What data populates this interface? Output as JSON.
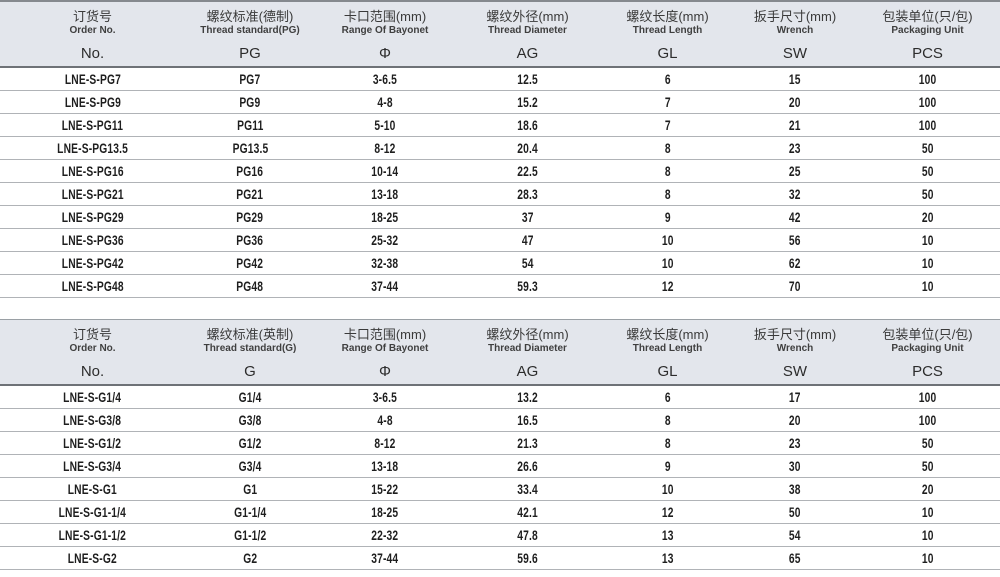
{
  "document": {
    "kind": "product-specification-tables",
    "series": "LNE-S cable gland selection tables"
  },
  "colors": {
    "header_bg": "#e3e6ec",
    "header_border_dark": "#6e7277",
    "table_top_border": "#85898e",
    "row_separator": "#b0b3b7",
    "body_text": "#1e1e1e",
    "header_text": "#3a3a3a"
  },
  "tables": [
    {
      "id": "pg-metric-table",
      "columns": [
        {
          "cn": "订货号",
          "en": "Order No.",
          "code": "No."
        },
        {
          "cn": "螺纹标准(德制)",
          "en": "Thread standard(PG)",
          "code": "PG"
        },
        {
          "cn": "卡口范围(mm)",
          "en": "Range Of Bayonet",
          "code": "Φ"
        },
        {
          "cn": "螺纹外径(mm)",
          "en": "Thread Diameter",
          "code": "AG"
        },
        {
          "cn": "螺纹长度(mm)",
          "en": "Thread Length",
          "code": "GL"
        },
        {
          "cn": "扳手尺寸(mm)",
          "en": "Wrench",
          "code": "SW"
        },
        {
          "cn": "包装单位(只/包)",
          "en": "Packaging Unit",
          "code": "PCS"
        }
      ],
      "rows": [
        [
          "LNE-S-PG7",
          "PG7",
          "3-6.5",
          "12.5",
          "6",
          "15",
          "100"
        ],
        [
          "LNE-S-PG9",
          "PG9",
          "4-8",
          "15.2",
          "7",
          "20",
          "100"
        ],
        [
          "LNE-S-PG11",
          "PG11",
          "5-10",
          "18.6",
          "7",
          "21",
          "100"
        ],
        [
          "LNE-S-PG13.5",
          "PG13.5",
          "8-12",
          "20.4",
          "8",
          "23",
          "50"
        ],
        [
          "LNE-S-PG16",
          "PG16",
          "10-14",
          "22.5",
          "8",
          "25",
          "50"
        ],
        [
          "LNE-S-PG21",
          "PG21",
          "13-18",
          "28.3",
          "8",
          "32",
          "50"
        ],
        [
          "LNE-S-PG29",
          "PG29",
          "18-25",
          "37",
          "9",
          "42",
          "20"
        ],
        [
          "LNE-S-PG36",
          "PG36",
          "25-32",
          "47",
          "10",
          "56",
          "10"
        ],
        [
          "LNE-S-PG42",
          "PG42",
          "32-38",
          "54",
          "10",
          "62",
          "10"
        ],
        [
          "LNE-S-PG48",
          "PG48",
          "37-44",
          "59.3",
          "12",
          "70",
          "10"
        ]
      ]
    },
    {
      "id": "g-imperial-table",
      "columns": [
        {
          "cn": "订货号",
          "en": "Order No.",
          "code": "No."
        },
        {
          "cn": "螺纹标准(英制)",
          "en": "Thread standard(G)",
          "code": "G"
        },
        {
          "cn": "卡口范围(mm)",
          "en": "Range Of Bayonet",
          "code": "Φ"
        },
        {
          "cn": "螺纹外径(mm)",
          "en": "Thread Diameter",
          "code": "AG"
        },
        {
          "cn": "螺纹长度(mm)",
          "en": "Thread Length",
          "code": "GL"
        },
        {
          "cn": "扳手尺寸(mm)",
          "en": "Wrench",
          "code": "SW"
        },
        {
          "cn": "包装单位(只/包)",
          "en": "Packaging Unit",
          "code": "PCS"
        }
      ],
      "rows": [
        [
          "LNE-S-G1/4",
          "G1/4",
          "3-6.5",
          "13.2",
          "6",
          "17",
          "100"
        ],
        [
          "LNE-S-G3/8",
          "G3/8",
          "4-8",
          "16.5",
          "8",
          "20",
          "100"
        ],
        [
          "LNE-S-G1/2",
          "G1/2",
          "8-12",
          "21.3",
          "8",
          "23",
          "50"
        ],
        [
          "LNE-S-G3/4",
          "G3/4",
          "13-18",
          "26.6",
          "9",
          "30",
          "50"
        ],
        [
          "LNE-S-G1",
          "G1",
          "15-22",
          "33.4",
          "10",
          "38",
          "20"
        ],
        [
          "LNE-S-G1-1/4",
          "G1-1/4",
          "18-25",
          "42.1",
          "12",
          "50",
          "10"
        ],
        [
          "LNE-S-G1-1/2",
          "G1-1/2",
          "22-32",
          "47.8",
          "13",
          "54",
          "10"
        ],
        [
          "LNE-S-G2",
          "G2",
          "37-44",
          "59.6",
          "13",
          "65",
          "10"
        ]
      ]
    }
  ],
  "layout_hints": {
    "column_width_percents": [
      18.5,
      13,
      14,
      14.5,
      13.5,
      12,
      14.5
    ]
  }
}
